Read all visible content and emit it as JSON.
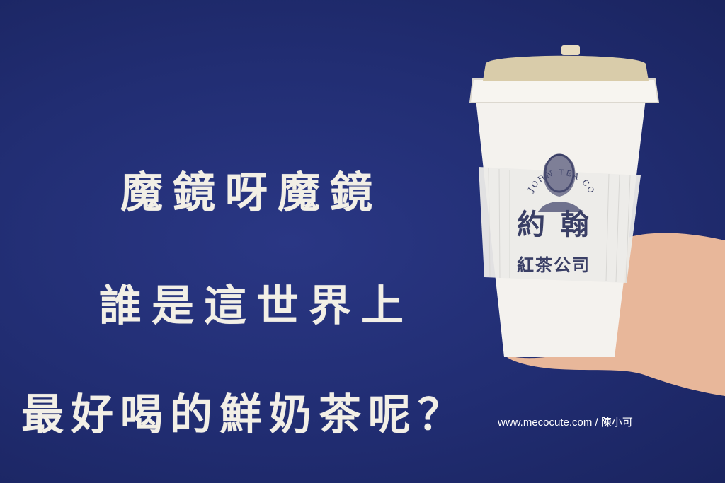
{
  "headline": {
    "line1": "魔鏡呀魔鏡",
    "line2": "誰是這世界上",
    "line3": "最好喝的鮮奶茶呢？"
  },
  "credit": "www.mecocute.com / 陳小可",
  "cup": {
    "arc_text": "JOHN TEA COMPANY",
    "brand_main": "約 翰",
    "brand_sub": "紅茶公司"
  },
  "colors": {
    "background": "#212d72",
    "headline": "#f2efe6",
    "cup": "#f4f2ee",
    "lid": "#d9ccaa",
    "logo": "#3a3f66"
  },
  "icons": [
    "hand-holding-cup",
    "portrait-logo-icon"
  ]
}
